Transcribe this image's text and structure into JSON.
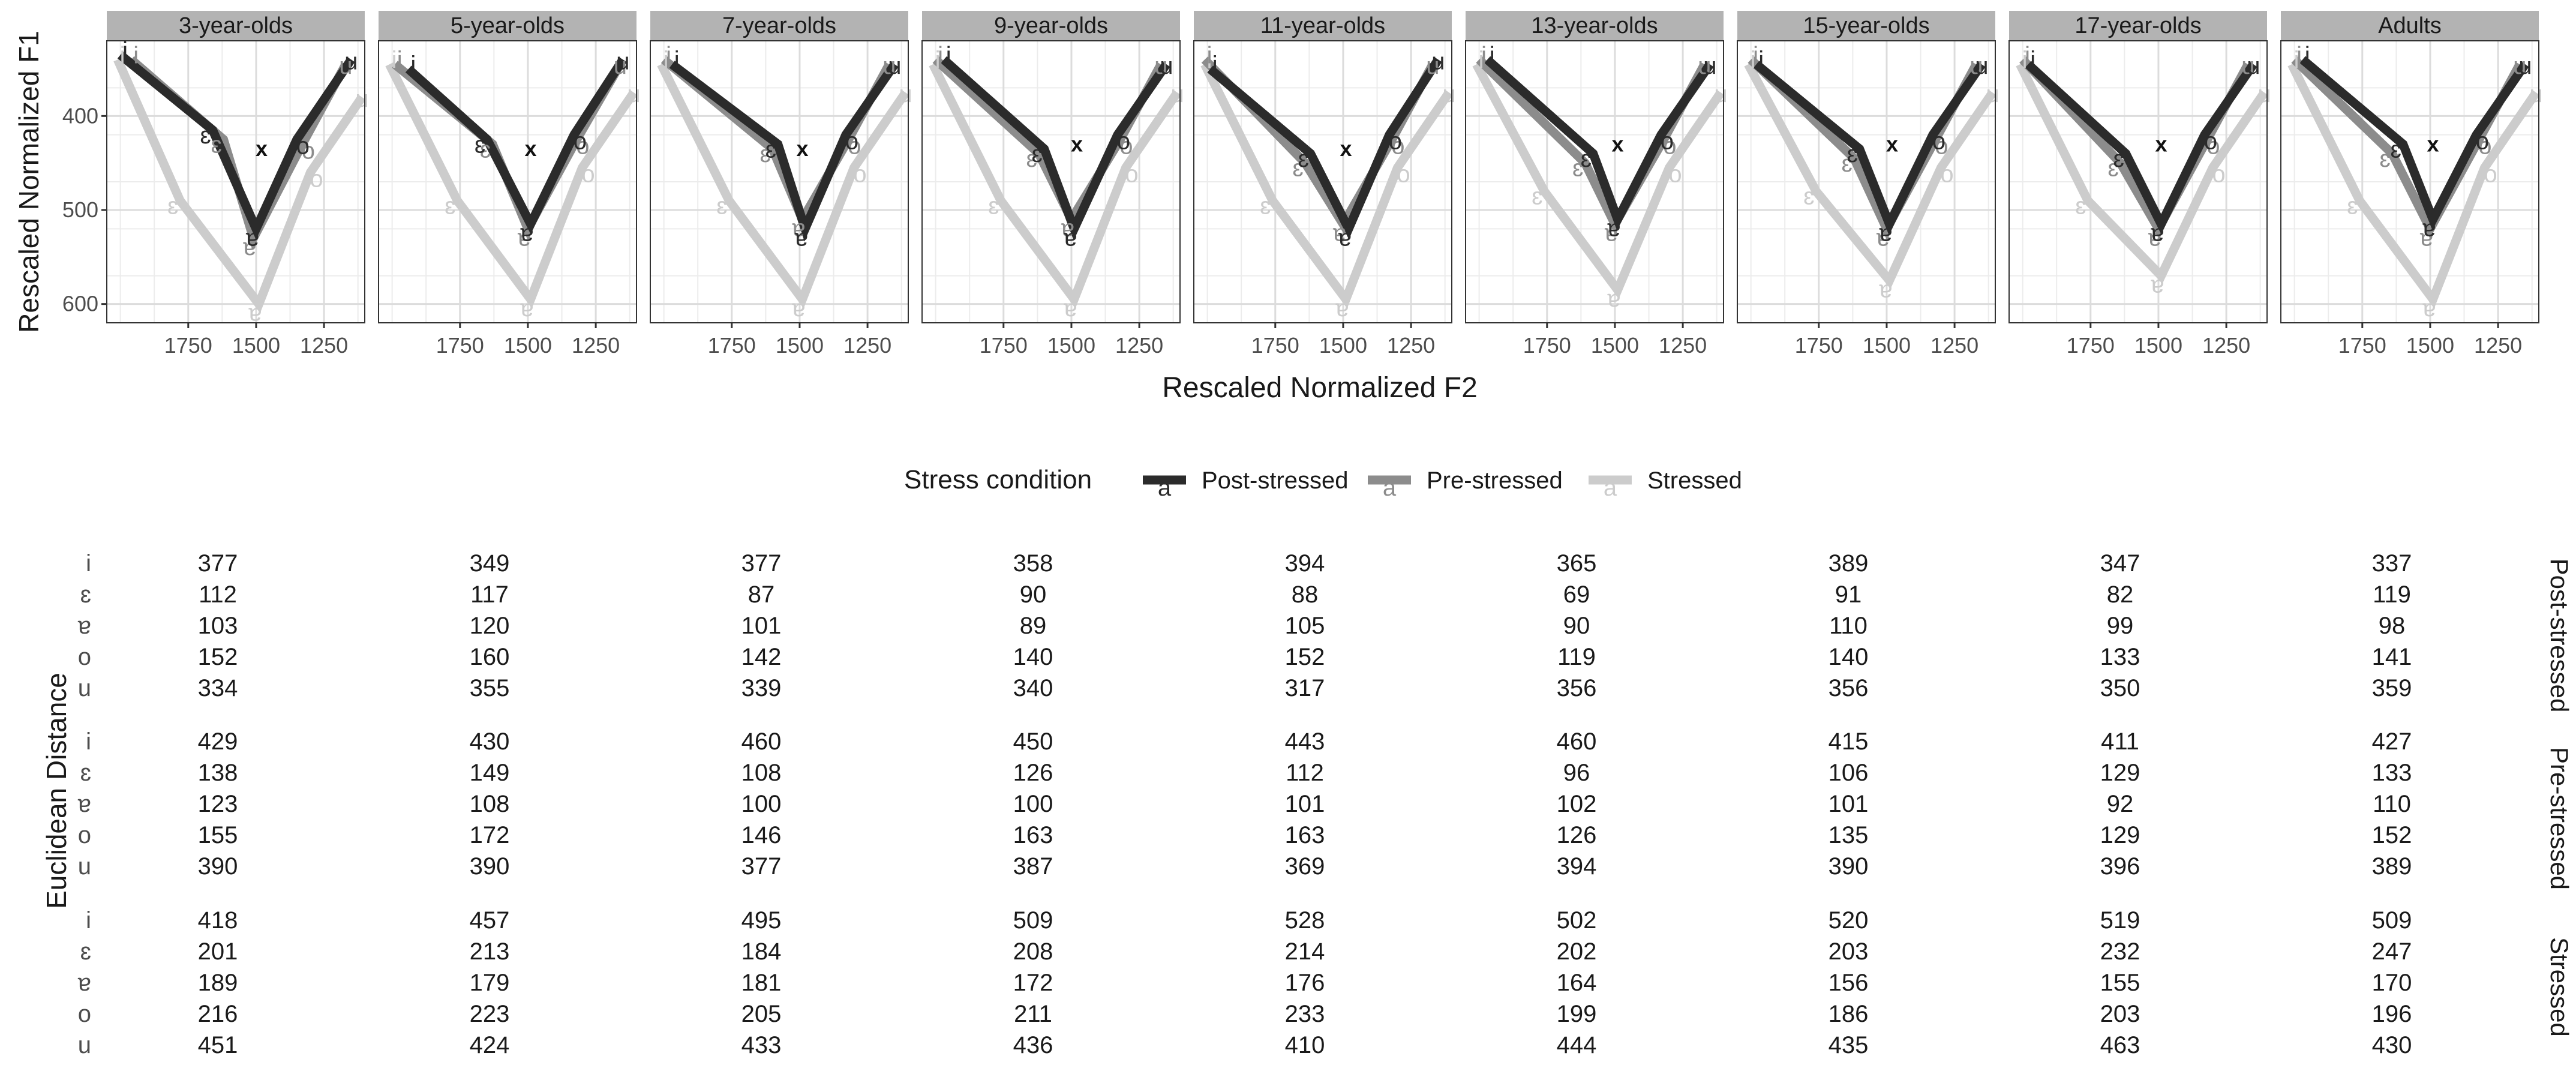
{
  "chart_data": {
    "type": "line",
    "y_axis_title": "Rescaled Normalized F1",
    "x_axis_title": "Rescaled Normalized F2",
    "x_reversed": true,
    "y_reversed": true,
    "xlim": [
      1100,
      2050
    ],
    "ylim": [
      320,
      620
    ],
    "x_ticks": [
      1750,
      1500,
      1250
    ],
    "x_tick_labels": [
      "1750",
      "1500",
      "1250"
    ],
    "y_ticks": [
      400,
      500,
      600
    ],
    "y_tick_labels": [
      "400",
      "500",
      "600"
    ],
    "vowels": [
      "i",
      "ɛ",
      "ɐ",
      "o",
      "u"
    ],
    "centroid_label": "x",
    "legend": {
      "title": "Stress condition",
      "position": "bottom",
      "key_glyph": "a",
      "entries": [
        "Post-stressed",
        "Pre-stressed",
        "Stressed"
      ]
    },
    "series_colors": {
      "Post-stressed": "#2b2b2b",
      "Pre-stressed": "#8c8c8c",
      "Stressed": "#cccccc"
    },
    "panels": [
      {
        "title": "3-year-olds",
        "centroid": {
          "x": 1480,
          "y": 435
        },
        "series": {
          "Post-stressed": {
            "x": [
              2000,
              1660,
              1500,
              1350,
              1150
            ],
            "y": [
              335,
              415,
              520,
              425,
              340
            ]
          },
          "Pre-stressed": {
            "x": [
              1960,
              1620,
              1510,
              1330,
              1170
            ],
            "y": [
              340,
              425,
              530,
              430,
              345
            ]
          },
          "Stressed": {
            "x": [
              2010,
              1780,
              1490,
              1300,
              1110
            ],
            "y": [
              340,
              490,
              600,
              460,
              380
            ]
          }
        }
      },
      {
        "title": "5-year-olds",
        "centroid": {
          "x": 1490,
          "y": 435
        },
        "series": {
          "Post-stressed": {
            "x": [
              1940,
              1650,
              1490,
              1330,
              1150
            ],
            "y": [
              350,
              425,
              515,
              420,
              340
            ]
          },
          "Pre-stressed": {
            "x": [
              1990,
              1630,
              1500,
              1320,
              1160
            ],
            "y": [
              345,
              430,
              520,
              425,
              345
            ]
          },
          "Stressed": {
            "x": [
              2010,
              1760,
              1490,
              1300,
              1110
            ],
            "y": [
              345,
              490,
              595,
              455,
              375
            ]
          }
        }
      },
      {
        "title": "7-year-olds",
        "centroid": {
          "x": 1490,
          "y": 435
        },
        "series": {
          "Post-stressed": {
            "x": [
              1970,
              1580,
              1480,
              1330,
              1150
            ],
            "y": [
              345,
              430,
              520,
              420,
              345
            ]
          },
          "Pre-stressed": {
            "x": [
              2000,
              1600,
              1490,
              1320,
              1170
            ],
            "y": [
              340,
              435,
              510,
              425,
              345
            ]
          },
          "Stressed": {
            "x": [
              2010,
              1760,
              1490,
              1300,
              1110
            ],
            "y": [
              345,
              490,
              595,
              455,
              375
            ]
          }
        }
      },
      {
        "title": "9-year-olds",
        "centroid": {
          "x": 1480,
          "y": 430
        },
        "series": {
          "Post-stressed": {
            "x": [
              1970,
              1600,
              1490,
              1330,
              1150
            ],
            "y": [
              340,
              435,
              520,
              420,
              345
            ]
          },
          "Pre-stressed": {
            "x": [
              2000,
              1620,
              1500,
              1320,
              1170
            ],
            "y": [
              340,
              440,
              510,
              425,
              345
            ]
          },
          "Stressed": {
            "x": [
              2010,
              1760,
              1490,
              1300,
              1110
            ],
            "y": [
              345,
              490,
              595,
              455,
              375
            ]
          }
        }
      },
      {
        "title": "11-year-olds",
        "centroid": {
          "x": 1490,
          "y": 435
        },
        "series": {
          "Post-stressed": {
            "x": [
              1990,
              1620,
              1480,
              1330,
              1150
            ],
            "y": [
              350,
              440,
              520,
              420,
              340
            ]
          },
          "Pre-stressed": {
            "x": [
              2010,
              1640,
              1500,
              1320,
              1170
            ],
            "y": [
              340,
              450,
              515,
              425,
              345
            ]
          },
          "Stressed": {
            "x": [
              2010,
              1760,
              1490,
              1300,
              1110
            ],
            "y": [
              345,
              490,
              595,
              455,
              375
            ]
          }
        }
      },
      {
        "title": "13-year-olds",
        "centroid": {
          "x": 1490,
          "y": 430
        },
        "series": {
          "Post-stressed": {
            "x": [
              1970,
              1580,
              1490,
              1330,
              1150
            ],
            "y": [
              340,
              440,
              510,
              420,
              345
            ]
          },
          "Pre-stressed": {
            "x": [
              2000,
              1610,
              1500,
              1320,
              1170
            ],
            "y": [
              340,
              450,
              515,
              425,
              345
            ]
          },
          "Stressed": {
            "x": [
              2010,
              1760,
              1490,
              1300,
              1110
            ],
            "y": [
              345,
              480,
              585,
              455,
              375
            ]
          }
        }
      },
      {
        "title": "15-year-olds",
        "centroid": {
          "x": 1480,
          "y": 430
        },
        "series": {
          "Post-stressed": {
            "x": [
              1980,
              1600,
              1490,
              1330,
              1150
            ],
            "y": [
              345,
              435,
              515,
              420,
              345
            ]
          },
          "Pre-stressed": {
            "x": [
              2000,
              1620,
              1500,
              1320,
              1170
            ],
            "y": [
              340,
              445,
              520,
              425,
              345
            ]
          },
          "Stressed": {
            "x": [
              2010,
              1760,
              1490,
              1300,
              1110
            ],
            "y": [
              345,
              480,
              575,
              455,
              375
            ]
          }
        }
      },
      {
        "title": "17-year-olds",
        "centroid": {
          "x": 1490,
          "y": 430
        },
        "series": {
          "Post-stressed": {
            "x": [
              1980,
              1620,
              1490,
              1330,
              1150
            ],
            "y": [
              345,
              440,
              515,
              420,
              345
            ]
          },
          "Pre-stressed": {
            "x": [
              2000,
              1640,
              1500,
              1320,
              1170
            ],
            "y": [
              340,
              450,
              520,
              425,
              345
            ]
          },
          "Stressed": {
            "x": [
              2010,
              1760,
              1490,
              1300,
              1110
            ],
            "y": [
              345,
              490,
              570,
              455,
              375
            ]
          }
        }
      },
      {
        "title": "Adults",
        "centroid": {
          "x": 1490,
          "y": 430
        },
        "series": {
          "Post-stressed": {
            "x": [
              1970,
              1600,
              1490,
              1330,
              1150
            ],
            "y": [
              340,
              430,
              510,
              420,
              345
            ]
          },
          "Pre-stressed": {
            "x": [
              2000,
              1640,
              1500,
              1320,
              1170
            ],
            "y": [
              340,
              440,
              520,
              425,
              345
            ]
          },
          "Stressed": {
            "x": [
              2010,
              1760,
              1490,
              1300,
              1110
            ],
            "y": [
              345,
              490,
              595,
              455,
              375
            ]
          }
        }
      }
    ],
    "distance_table": {
      "y_axis_title": "Euclidean Distance",
      "groups": [
        {
          "name": "Post-stressed",
          "rows": [
            {
              "vowel": "i",
              "values": [
                377,
                349,
                377,
                358,
                394,
                365,
                389,
                347,
                337
              ]
            },
            {
              "vowel": "ɛ",
              "values": [
                112,
                117,
                87,
                90,
                88,
                69,
                91,
                82,
                119
              ]
            },
            {
              "vowel": "ɐ",
              "values": [
                103,
                120,
                101,
                89,
                105,
                90,
                110,
                99,
                98
              ]
            },
            {
              "vowel": "o",
              "values": [
                152,
                160,
                142,
                140,
                152,
                119,
                140,
                133,
                141
              ]
            },
            {
              "vowel": "u",
              "values": [
                334,
                355,
                339,
                340,
                317,
                356,
                356,
                350,
                359
              ]
            }
          ]
        },
        {
          "name": "Pre-stressed",
          "rows": [
            {
              "vowel": "i",
              "values": [
                429,
                430,
                460,
                450,
                443,
                460,
                415,
                411,
                427
              ]
            },
            {
              "vowel": "ɛ",
              "values": [
                138,
                149,
                108,
                126,
                112,
                96,
                106,
                129,
                133
              ]
            },
            {
              "vowel": "ɐ",
              "values": [
                123,
                108,
                100,
                100,
                101,
                102,
                101,
                92,
                110
              ]
            },
            {
              "vowel": "o",
              "values": [
                155,
                172,
                146,
                163,
                163,
                126,
                135,
                129,
                152
              ]
            },
            {
              "vowel": "u",
              "values": [
                390,
                390,
                377,
                387,
                369,
                394,
                390,
                396,
                389
              ]
            }
          ]
        },
        {
          "name": "Stressed",
          "rows": [
            {
              "vowel": "i",
              "values": [
                418,
                457,
                495,
                509,
                528,
                502,
                520,
                519,
                509
              ]
            },
            {
              "vowel": "ɛ",
              "values": [
                201,
                213,
                184,
                208,
                214,
                202,
                203,
                232,
                247
              ]
            },
            {
              "vowel": "ɐ",
              "values": [
                189,
                179,
                181,
                172,
                176,
                164,
                156,
                155,
                170
              ]
            },
            {
              "vowel": "o",
              "values": [
                216,
                223,
                205,
                211,
                233,
                199,
                186,
                203,
                196
              ]
            },
            {
              "vowel": "u",
              "values": [
                451,
                424,
                433,
                436,
                410,
                444,
                435,
                463,
                430
              ]
            }
          ]
        }
      ]
    }
  }
}
